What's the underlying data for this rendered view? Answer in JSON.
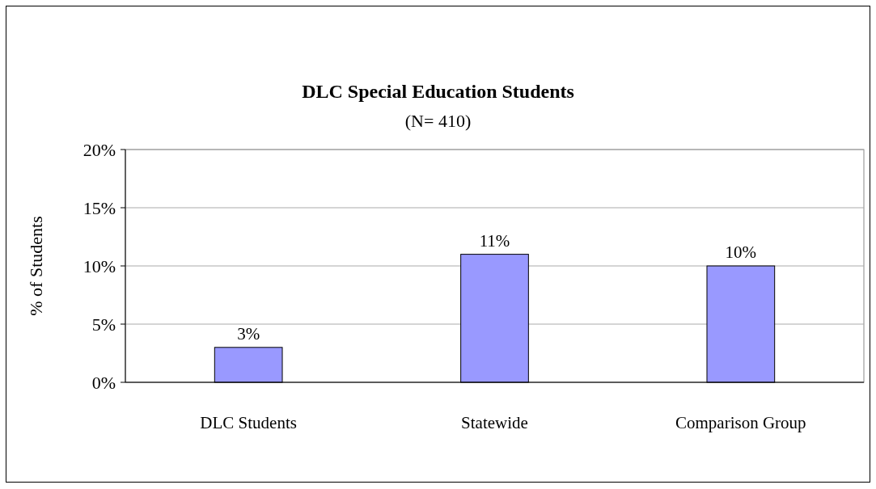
{
  "chart_data": {
    "type": "bar",
    "title": "DLC Special Education Students",
    "subtitle": "(N= 410)",
    "ylabel": "% of Students",
    "categories": [
      "DLC Students",
      "Statewide",
      "Comparison Group"
    ],
    "values": [
      3,
      11,
      10
    ],
    "color": "#9999ff",
    "value_labels": [
      "3%",
      "11%",
      "10%"
    ],
    "ylim": [
      0,
      20
    ],
    "yticks": [
      {
        "value": 0,
        "label": "0%"
      },
      {
        "value": 5,
        "label": "5%"
      },
      {
        "value": 10,
        "label": "10%"
      },
      {
        "value": 15,
        "label": "15%"
      },
      {
        "value": 20,
        "label": "20%"
      }
    ],
    "grid": "y"
  }
}
